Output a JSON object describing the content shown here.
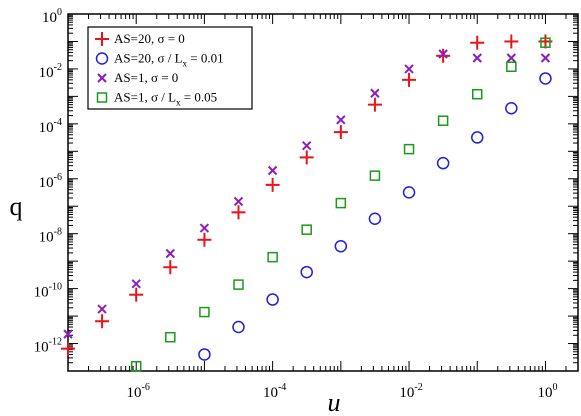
{
  "chart_data": {
    "type": "scatter",
    "xlabel": "u",
    "ylabel": "q",
    "xscale": "log",
    "yscale": "log",
    "xlim": [
      1e-07,
      3
    ],
    "ylim": [
      1e-13,
      1
    ],
    "grid": false,
    "legend_position": "top-left",
    "x_tick_labels": [
      {
        "value": 1e-06,
        "base": "10",
        "exp": "-6"
      },
      {
        "value": 0.0001,
        "base": "10",
        "exp": "-4"
      },
      {
        "value": 0.01,
        "base": "10",
        "exp": "-2"
      },
      {
        "value": 1,
        "base": "10",
        "exp": "0"
      }
    ],
    "y_tick_labels": [
      {
        "value": 1e-12,
        "base": "10",
        "exp": "-12"
      },
      {
        "value": 1e-10,
        "base": "10",
        "exp": "-10"
      },
      {
        "value": 1e-08,
        "base": "10",
        "exp": "-8"
      },
      {
        "value": 1e-06,
        "base": "10",
        "exp": "-6"
      },
      {
        "value": 0.0001,
        "base": "10",
        "exp": "-4"
      },
      {
        "value": 0.01,
        "base": "10",
        "exp": "-2"
      },
      {
        "value": 1,
        "base": "10",
        "exp": "0"
      }
    ],
    "series": [
      {
        "name": "AS=20,  σ = 0",
        "legend_parts": {
          "main": "AS=20,  σ = 0",
          "sub": "",
          "tail": ""
        },
        "marker": "plus",
        "color": "#e8141a",
        "x": [
          1e-07,
          3.16e-07,
          1e-06,
          3.16e-06,
          1e-05,
          3.16e-05,
          0.0001,
          0.000316,
          0.001,
          0.00316,
          0.01,
          0.0316,
          0.1,
          0.316,
          1
        ],
        "y": [
          6.5e-13,
          6.5e-12,
          6e-11,
          6e-10,
          6e-09,
          6e-08,
          6e-07,
          6e-06,
          5e-05,
          0.0005,
          0.004,
          0.03,
          0.09,
          0.1,
          0.1
        ]
      },
      {
        "name": "AS=20,  σ / Lx = 0.01",
        "legend_parts": {
          "main": "AS=20,  σ / L",
          "sub": "x",
          "tail": " = 0.01"
        },
        "marker": "circle",
        "color": "#1f1fe0",
        "x": [
          1e-05,
          3.16e-05,
          0.0001,
          0.000316,
          0.001,
          0.00316,
          0.01,
          0.0316,
          0.1,
          0.316,
          1
        ],
        "y": [
          4e-13,
          4e-12,
          4e-11,
          4e-10,
          3.5e-09,
          3.5e-08,
          3.2e-07,
          3.7e-06,
          3.2e-05,
          0.00037,
          0.0045
        ]
      },
      {
        "name": "AS=1,    σ = 0",
        "legend_parts": {
          "main": "AS=1,    σ = 0",
          "sub": "",
          "tail": ""
        },
        "marker": "cross",
        "color": "#8b1fb8",
        "x": [
          1e-07,
          3.16e-07,
          1e-06,
          3.16e-06,
          1e-05,
          3.16e-05,
          0.0001,
          0.000316,
          0.001,
          0.00316,
          0.01,
          0.0316,
          0.1,
          0.316,
          1
        ],
        "y": [
          2.2e-12,
          1.8e-11,
          1.5e-10,
          1.9e-09,
          1.6e-08,
          1.5e-07,
          2e-06,
          1.6e-05,
          0.00014,
          0.0013,
          0.01,
          0.035,
          0.025,
          0.025,
          0.025
        ]
      },
      {
        "name": "AS=1,    σ / Lx = 0.05",
        "legend_parts": {
          "main": "AS=1,    σ / L",
          "sub": "x",
          "tail": " = 0.05"
        },
        "marker": "square",
        "color": "#1a9a1a",
        "x": [
          1e-06,
          3.16e-06,
          1e-05,
          3.16e-05,
          0.0001,
          0.000316,
          0.001,
          0.00316,
          0.01,
          0.0316,
          0.1,
          0.316,
          1
        ],
        "y": [
          1.5e-13,
          1.7e-12,
          1.4e-11,
          1.4e-10,
          1.4e-09,
          1.4e-08,
          1.3e-07,
          1.3e-06,
          1.2e-05,
          0.00013,
          0.0012,
          0.012,
          0.09
        ]
      }
    ]
  }
}
